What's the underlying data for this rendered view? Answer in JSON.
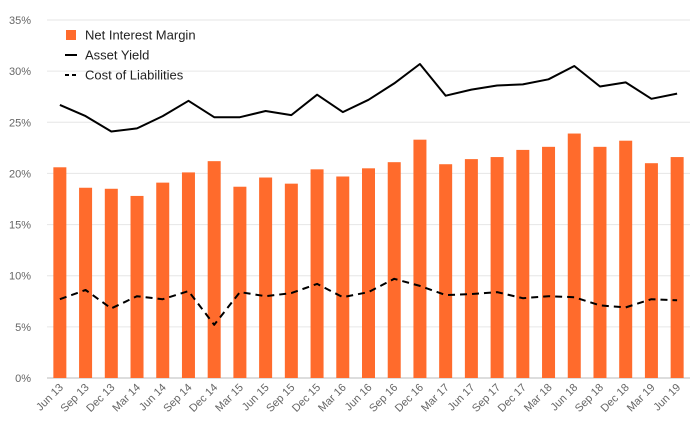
{
  "colors": {
    "bar": "#ff6b2c",
    "asset_line": "#000000",
    "liab_line": "#000000",
    "grid": "#e6e6e6",
    "axis": "#bbbbbb"
  },
  "legend": {
    "items": [
      {
        "label": "Net Interest Margin",
        "kind": "bar"
      },
      {
        "label": "Asset Yield",
        "kind": "line"
      },
      {
        "label": "Cost of Liabilities",
        "kind": "dash"
      }
    ]
  },
  "chart_data": {
    "type": "bar",
    "title": "",
    "xlabel": "",
    "ylabel": "",
    "ylim": [
      0,
      35
    ],
    "yticks": [
      0,
      5,
      10,
      15,
      20,
      25,
      30,
      35
    ],
    "ytick_labels": [
      "0%",
      "5%",
      "10%",
      "15%",
      "20%",
      "25%",
      "30%",
      "35%"
    ],
    "grid": true,
    "legend_position": "top-left",
    "categories": [
      "Jun 13",
      "Sep 13",
      "Dec 13",
      "Mar 14",
      "Jun 14",
      "Sep 14",
      "Dec 14",
      "Mar 15",
      "Jun 15",
      "Sep 15",
      "Dec 15",
      "Mar 16",
      "Jun 16",
      "Sep 16",
      "Dec 16",
      "Mar 17",
      "Jun 17",
      "Sep 17",
      "Dec 17",
      "Mar 18",
      "Jun 18",
      "Sep 18",
      "Dec 18",
      "Mar 19",
      "Jun 19"
    ],
    "series": [
      {
        "name": "Net Interest Margin",
        "type": "bar",
        "values": [
          20.6,
          18.6,
          18.5,
          17.8,
          19.1,
          20.1,
          21.2,
          18.7,
          19.6,
          19.0,
          20.4,
          19.7,
          20.5,
          21.1,
          23.3,
          20.9,
          21.4,
          21.6,
          22.3,
          22.6,
          23.9,
          22.6,
          23.2,
          21.0,
          21.6
        ]
      },
      {
        "name": "Asset Yield",
        "type": "line",
        "values": [
          26.7,
          25.6,
          24.1,
          24.4,
          25.6,
          27.1,
          25.5,
          25.5,
          26.1,
          25.7,
          27.7,
          26.0,
          27.2,
          28.8,
          30.7,
          27.6,
          28.2,
          28.6,
          28.7,
          29.2,
          30.5,
          28.5,
          28.9,
          27.3,
          27.8
        ]
      },
      {
        "name": "Cost of Liabilities",
        "type": "dash",
        "values": [
          7.7,
          8.6,
          6.8,
          8.0,
          7.7,
          8.5,
          5.2,
          8.4,
          8.0,
          8.3,
          9.2,
          7.9,
          8.4,
          9.7,
          9.0,
          8.1,
          8.2,
          8.4,
          7.8,
          8.0,
          7.9,
          7.1,
          6.9,
          7.7,
          7.6
        ]
      }
    ]
  }
}
